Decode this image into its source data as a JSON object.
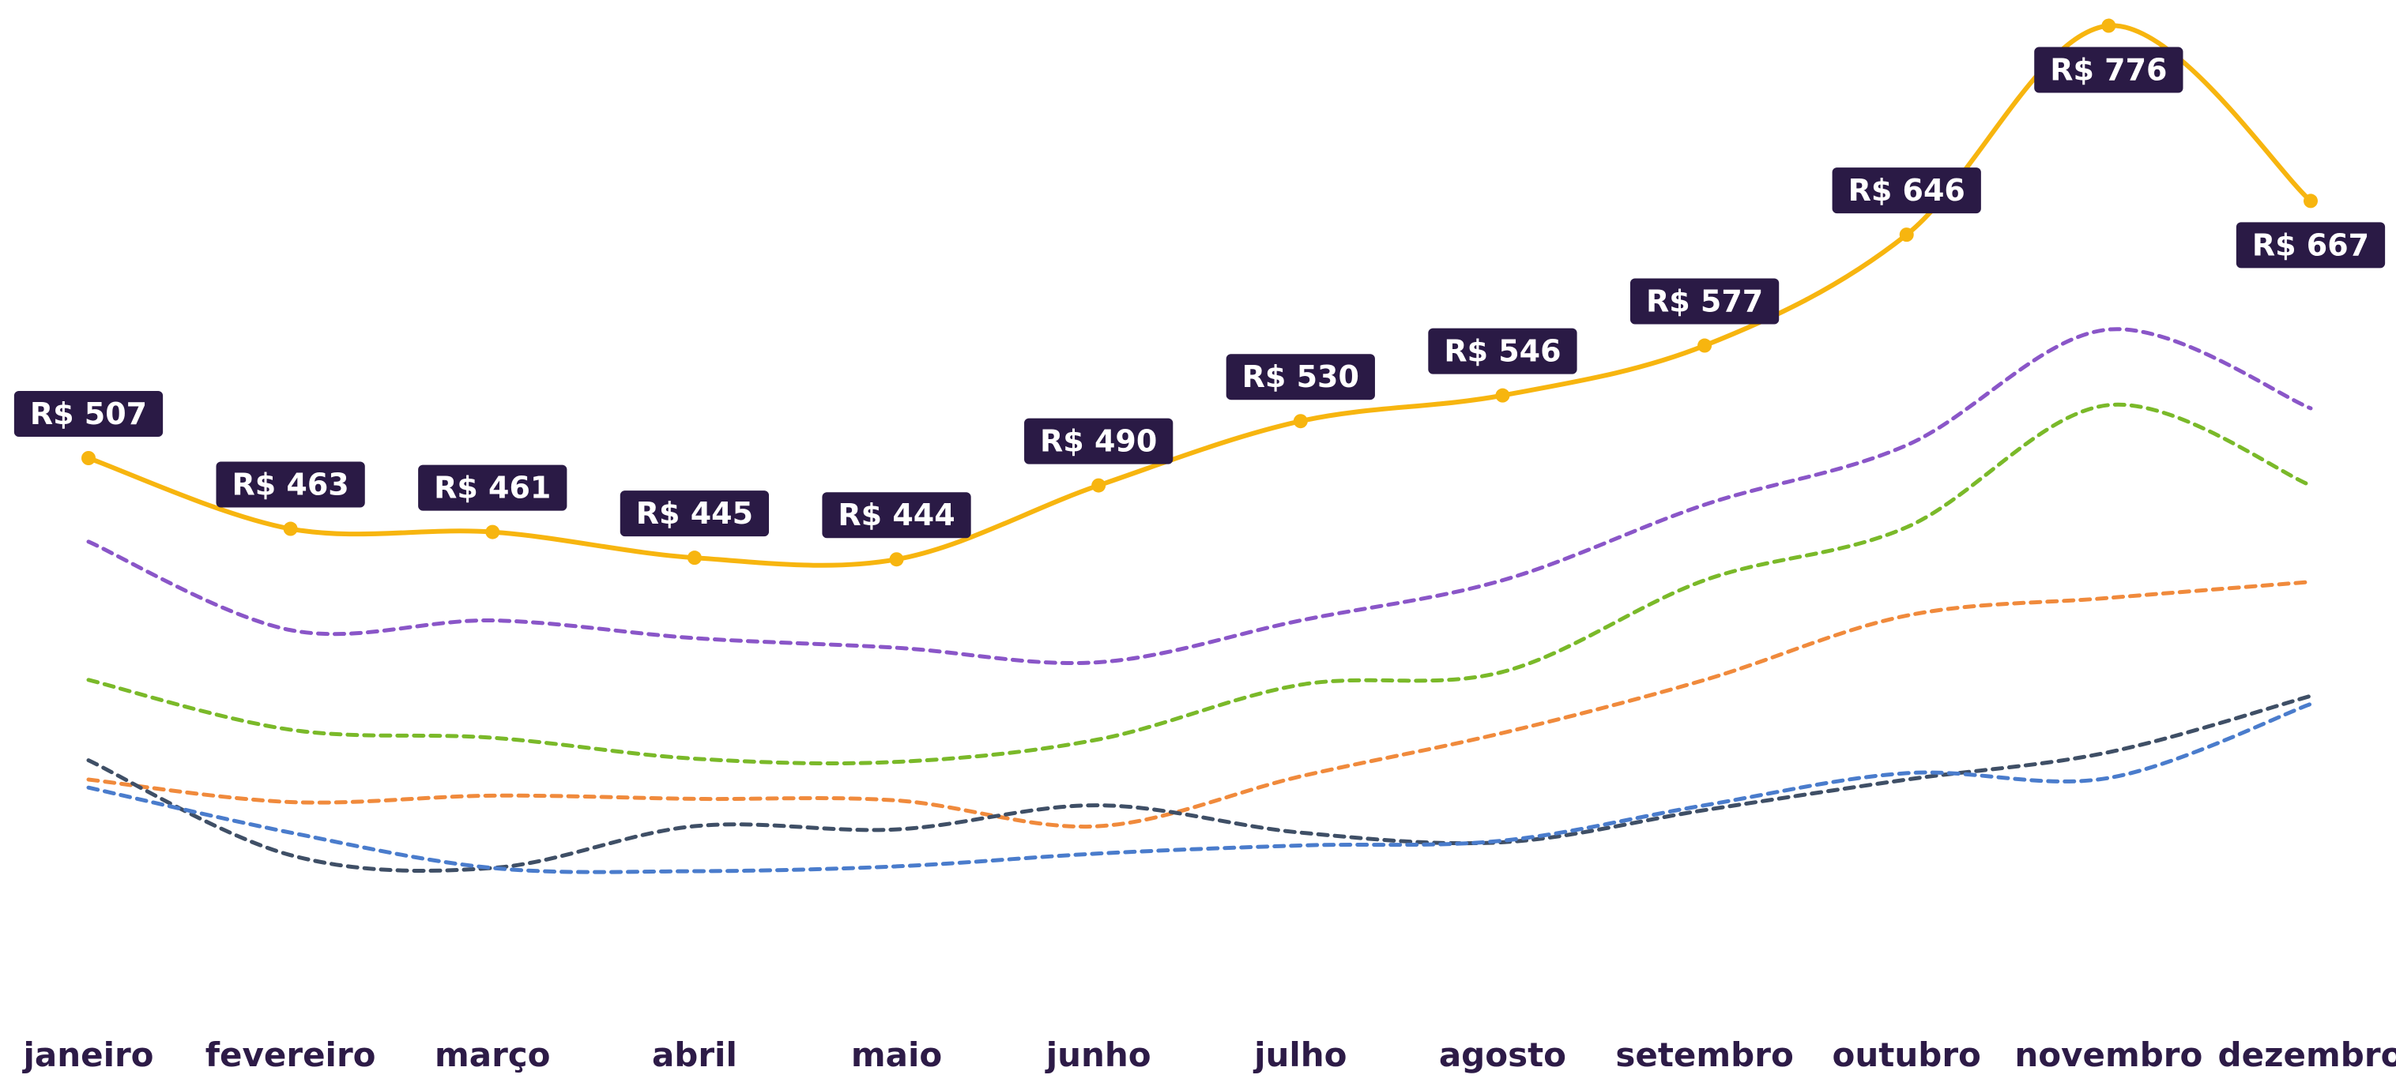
{
  "chart_data": {
    "type": "line",
    "categories": [
      "janeiro",
      "fevereiro",
      "março",
      "abril",
      "maio",
      "junho",
      "julho",
      "agosto",
      "setembro",
      "outubro",
      "novembro",
      "dezembro"
    ],
    "ylim": [
      165,
      792
    ],
    "series": [
      {
        "color": "#8a56c8",
        "dashed": true,
        "values": [
          455,
          400,
          406,
          395,
          389,
          380,
          406,
          431,
          478,
          515,
          587,
          538
        ]
      },
      {
        "color": "#7ab929",
        "dashed": true,
        "values": [
          369,
          338,
          333,
          320,
          318,
          332,
          366,
          374,
          431,
          464,
          540,
          490
        ]
      },
      {
        "color": "#f08a3c",
        "dashed": true,
        "values": [
          307,
          293,
          297,
          295,
          294,
          278,
          309,
          336,
          369,
          409,
          420,
          430
        ]
      },
      {
        "color": "#3f4f66",
        "dashed": true,
        "values": [
          319,
          260,
          252,
          278,
          276,
          291,
          274,
          268,
          288,
          307,
          324,
          359
        ]
      },
      {
        "color": "#4a7ccc",
        "dashed": true,
        "values": [
          302,
          274,
          252,
          250,
          253,
          261,
          266,
          269,
          291,
          311,
          308,
          354
        ]
      },
      {
        "color": "#f7b50f",
        "dashed": false,
        "markers": true,
        "values": [
          507,
          463,
          461,
          445,
          444,
          490,
          530,
          546,
          577,
          646,
          776,
          667
        ],
        "value_labels": [
          "R$ 507",
          "R$ 463",
          "R$ 461",
          "R$ 445",
          "R$ 444",
          "R$ 490",
          "R$ 530",
          "R$ 546",
          "R$ 577",
          "R$ 646",
          "R$ 776",
          "R$ 667"
        ]
      }
    ]
  }
}
